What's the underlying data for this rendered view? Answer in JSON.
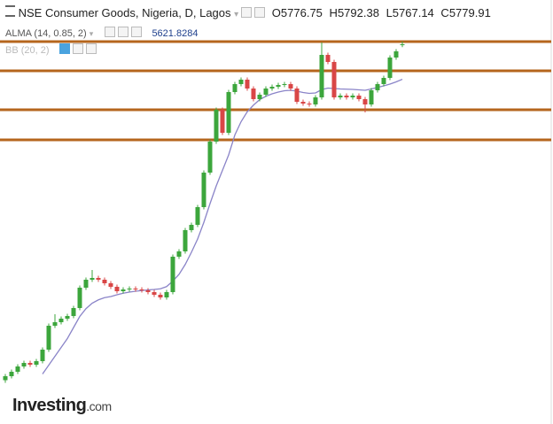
{
  "chart_data": {
    "type": "candlestick",
    "title": "NSE Consumer Goods, Nigeria, D, Lagos",
    "ohlc_labels": [
      "O",
      "H",
      "L",
      "C"
    ],
    "open": [
      4262,
      4280,
      4300,
      4324,
      4340,
      4332,
      4348,
      4400,
      4508,
      4524,
      4540,
      4552,
      4588,
      4680,
      4716,
      4724,
      4716,
      4700,
      4684,
      4664,
      4672,
      4676,
      4672,
      4668,
      4660,
      4648,
      4636,
      4660,
      4820,
      4844,
      4940,
      4964,
      5044,
      5200,
      5340,
      5484,
      5380,
      5564,
      5600,
      5620,
      5580,
      5532,
      5552,
      5580,
      5588,
      5596,
      5600,
      5580,
      5520,
      5512,
      5508,
      5540,
      5732,
      5700,
      5540,
      5548,
      5540,
      5548,
      5532,
      5508,
      5572,
      5600,
      5628,
      5720,
      5776.75
    ],
    "high": [
      4290,
      4310,
      4334,
      4350,
      4350,
      4358,
      4410,
      4518,
      4560,
      4550,
      4562,
      4598,
      4690,
      4726,
      4760,
      4734,
      4726,
      4710,
      4694,
      4682,
      4686,
      4686,
      4682,
      4678,
      4670,
      4658,
      4670,
      4830,
      4854,
      4950,
      4974,
      5054,
      5210,
      5350,
      5494,
      5494,
      5574,
      5610,
      5630,
      5630,
      5590,
      5562,
      5590,
      5598,
      5606,
      5610,
      5610,
      5590,
      5530,
      5522,
      5550,
      5788,
      5742,
      5710,
      5558,
      5558,
      5558,
      5558,
      5542,
      5582,
      5610,
      5638,
      5730,
      5758,
      5792.38
    ],
    "low": [
      4250,
      4270,
      4290,
      4314,
      4322,
      4322,
      4338,
      4390,
      4498,
      4514,
      4530,
      4542,
      4578,
      4670,
      4706,
      4706,
      4690,
      4674,
      4654,
      4654,
      4662,
      4662,
      4658,
      4650,
      4638,
      4626,
      4626,
      4650,
      4810,
      4834,
      4930,
      4954,
      5034,
      5190,
      5330,
      5370,
      5370,
      5554,
      5590,
      5570,
      5522,
      5522,
      5542,
      5570,
      5578,
      5586,
      5570,
      5510,
      5502,
      5498,
      5498,
      5530,
      5690,
      5530,
      5530,
      5530,
      5530,
      5522,
      5472,
      5498,
      5562,
      5590,
      5618,
      5710,
      5767.14
    ],
    "close": [
      4280,
      4300,
      4324,
      4340,
      4332,
      4348,
      4400,
      4508,
      4524,
      4540,
      4552,
      4588,
      4680,
      4716,
      4724,
      4716,
      4700,
      4684,
      4664,
      4672,
      4676,
      4672,
      4668,
      4660,
      4648,
      4636,
      4660,
      4820,
      4844,
      4940,
      4964,
      5044,
      5200,
      5340,
      5484,
      5380,
      5564,
      5600,
      5620,
      5580,
      5532,
      5552,
      5580,
      5588,
      5596,
      5600,
      5580,
      5520,
      5512,
      5508,
      5540,
      5732,
      5700,
      5540,
      5548,
      5540,
      5548,
      5532,
      5508,
      5572,
      5600,
      5628,
      5720,
      5748,
      5779.91
    ],
    "up_color": "#3ca63c",
    "down_color": "#d94646",
    "indicators": [
      {
        "name": "ALMA (14, 0.85, 2)",
        "color": "#8a84c8",
        "values": [
          null,
          null,
          null,
          null,
          null,
          null,
          4290,
          4330,
          4370,
          4410,
          4450,
          4500,
          4550,
          4585,
          4610,
          4625,
          4635,
          4640,
          4648,
          4655,
          4660,
          4664,
          4667,
          4670,
          4672,
          4675,
          4685,
          4710,
          4740,
          4785,
          4840,
          4900,
          4975,
          5060,
          5140,
          5210,
          5280,
          5370,
          5430,
          5475,
          5505,
          5530,
          5545,
          5556,
          5564,
          5570,
          5572,
          5568,
          5562,
          5558,
          5560,
          5575,
          5582,
          5580,
          5578,
          5577,
          5576,
          5574,
          5572,
          5578,
          5585,
          5592,
          5600,
          5610,
          5621.8284
        ]
      },
      {
        "name": "BB (20, 2)"
      }
    ],
    "levels": {
      "values": [
        5792,
        5660,
        5484,
        5348
      ],
      "color": "#b5651d"
    },
    "ylim": [
      4064,
      5980
    ]
  },
  "branding": {
    "name": "Investing",
    "suffix": ".com"
  }
}
